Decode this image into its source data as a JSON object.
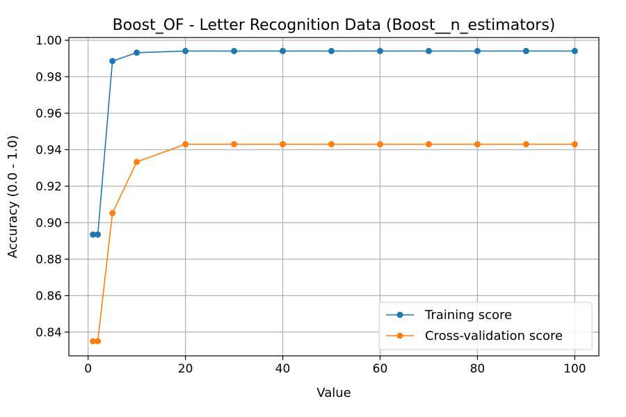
{
  "chart_data": {
    "type": "line",
    "title": "Boost_OF - Letter Recognition Data (Boost__n_estimators)",
    "xlabel": "Value",
    "ylabel": "Accuracy (0.0 - 1.0)",
    "xlim": [
      -3.95,
      104.95
    ],
    "ylim": [
      0.827,
      1.0015
    ],
    "grid": true,
    "legend_position": "lower-right",
    "x": [
      1,
      2,
      5,
      10,
      20,
      30,
      40,
      50,
      60,
      70,
      80,
      90,
      100
    ],
    "x_ticks": [
      0,
      20,
      40,
      60,
      80,
      100
    ],
    "x_tick_labels": [
      "0",
      "20",
      "40",
      "60",
      "80",
      "100"
    ],
    "y_ticks": [
      0.84,
      0.86,
      0.88,
      0.9,
      0.92,
      0.94,
      0.96,
      0.98,
      1.0
    ],
    "y_tick_labels": [
      "0.84",
      "0.86",
      "0.88",
      "0.90",
      "0.92",
      "0.94",
      "0.96",
      "0.98",
      "1.00"
    ],
    "series": [
      {
        "name": "Training score",
        "color": "#1f77b4",
        "values": [
          0.8935,
          0.8935,
          0.9886,
          0.9932,
          0.9941,
          0.9941,
          0.9941,
          0.9941,
          0.9941,
          0.9941,
          0.9941,
          0.9941,
          0.9941
        ]
      },
      {
        "name": "Cross-validation score",
        "color": "#ff7f0e",
        "values": [
          0.835,
          0.835,
          0.9052,
          0.9333,
          0.943,
          0.943,
          0.943,
          0.943,
          0.943,
          0.943,
          0.943,
          0.943,
          0.943
        ]
      }
    ]
  }
}
